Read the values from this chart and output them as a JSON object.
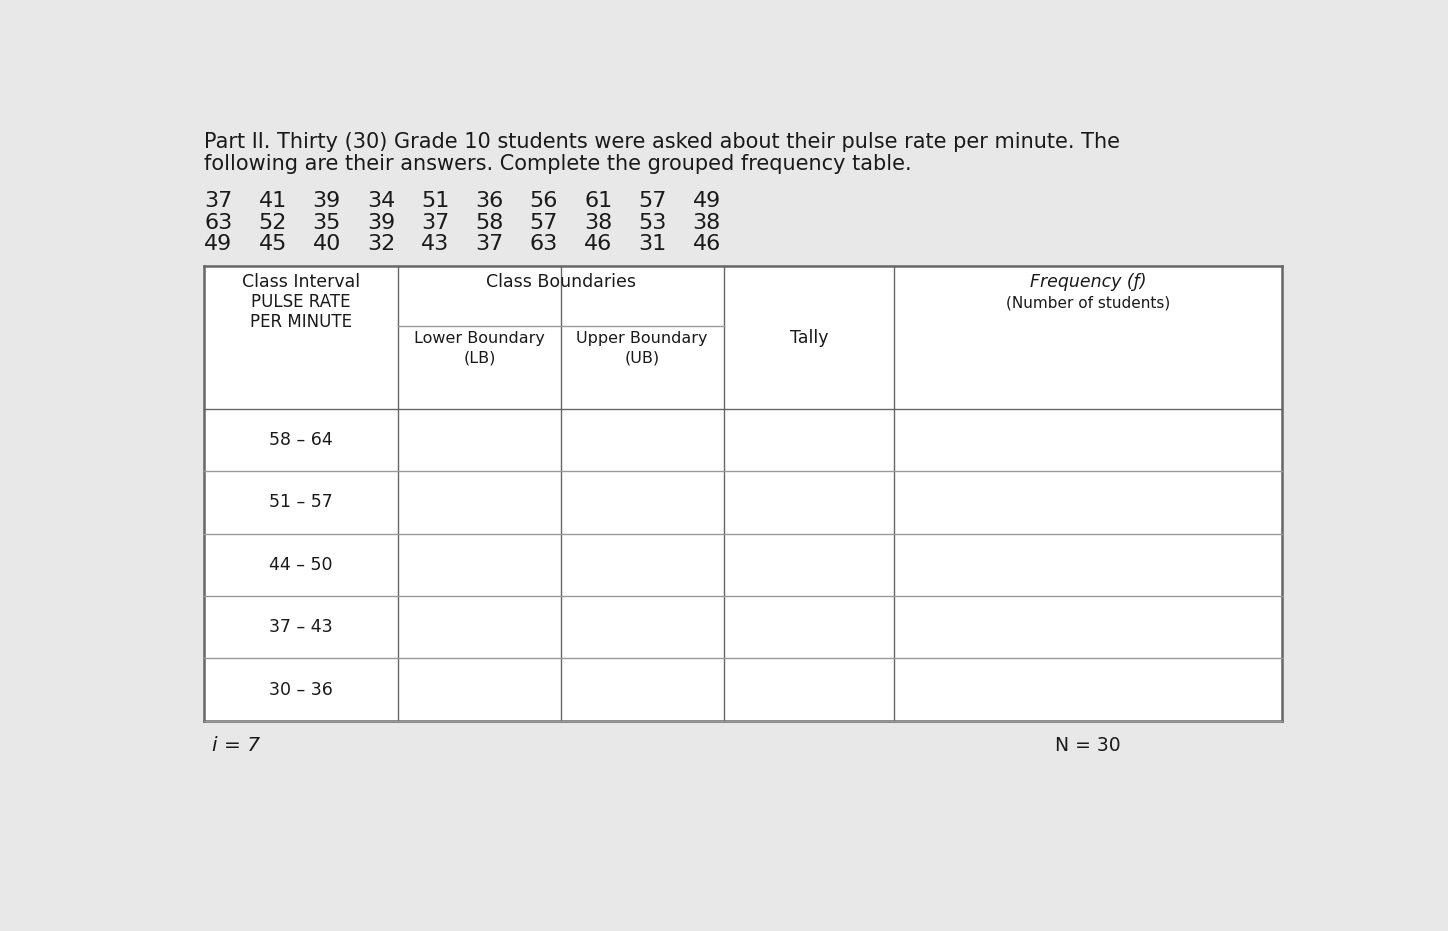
{
  "title_line1": "Part II. Thirty (30) Grade 10 students were asked about their pulse rate per minute. The",
  "title_line2": "following are their answers. Complete the grouped frequency table.",
  "data_rows": [
    [
      "37",
      "41",
      "39",
      "34",
      "51",
      "36",
      "56",
      "61",
      "57",
      "49"
    ],
    [
      "63",
      "52",
      "35",
      "39",
      "37",
      "58",
      "57",
      "38",
      "53",
      "38"
    ],
    [
      "49",
      "45",
      "40",
      "32",
      "43",
      "37",
      "63",
      "46",
      "31",
      "46"
    ]
  ],
  "header_col1_line1": "Class Interval",
  "header_col1_line2": "PULSE RATE",
  "header_col1_line3": "PER MINUTE",
  "header_col2": "Class Boundaries",
  "header_col2a": "Lower Boundary",
  "header_col2a_sub": "(LB)",
  "header_col2b": "Upper Boundary",
  "header_col2b_sub": "(UB)",
  "header_col3": "Tally",
  "header_col4_line1": "Frequency (ƒ)",
  "header_col4_line2": "(Number of students)",
  "class_intervals": [
    "58 – 64",
    "51 – 57",
    "44 – 50",
    "37 – 43",
    "30 – 36"
  ],
  "footer_left": "i = 7",
  "footer_right": "N = 30",
  "bg_color": "#e8e8e8",
  "table_bg": "#f5f5f5",
  "text_color": "#1a1a1a",
  "title_fontsize": 15,
  "data_fontsize": 16,
  "table_fontsize": 12.5
}
